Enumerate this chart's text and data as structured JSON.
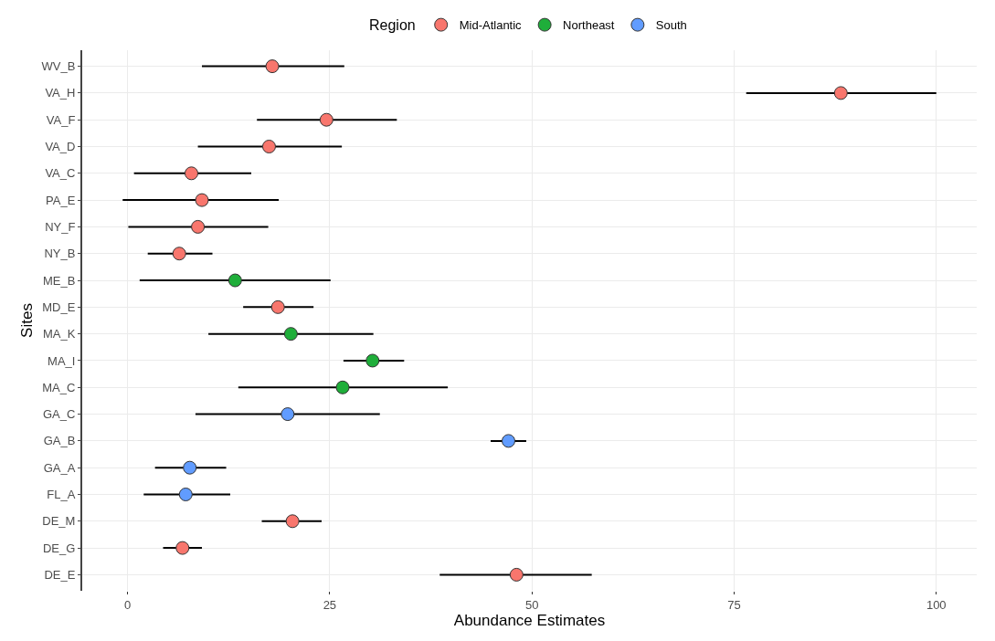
{
  "chart_data": {
    "type": "scatter",
    "orientation": "horizontal",
    "xlabel": "Abundance Estimates",
    "ylabel": "Sites",
    "legend_title": "Region",
    "legend": "top",
    "grid": true,
    "marker": "circle",
    "categories": [
      "WV_B",
      "VA_H",
      "VA_F",
      "VA_D",
      "VA_C",
      "PA_E",
      "NY_F",
      "NY_B",
      "ME_B",
      "MD_E",
      "MA_K",
      "MA_I",
      "MA_C",
      "GA_C",
      "GA_B",
      "GA_A",
      "FL_A",
      "DE_M",
      "DE_G",
      "DE_E"
    ],
    "xlim": [
      -5.6,
      105
    ],
    "xticks": [
      0,
      25,
      50,
      75,
      100
    ],
    "series": [
      {
        "name": "Mid-Atlantic",
        "color": "#f8766d",
        "values": [
          17.9,
          88.2,
          24.6,
          17.5,
          7.9,
          9.2,
          8.7,
          6.4,
          null,
          18.6,
          null,
          null,
          null,
          null,
          null,
          null,
          null,
          20.4,
          6.8,
          48.1
        ],
        "errors": [
          [
            9.2,
            26.8
          ],
          [
            76.5,
            100
          ],
          [
            16.0,
            33.3
          ],
          [
            8.7,
            26.5
          ],
          [
            0.8,
            15.3
          ],
          [
            -0.6,
            18.7
          ],
          [
            0.1,
            17.4
          ],
          [
            2.5,
            10.5
          ],
          null,
          [
            14.3,
            23.0
          ],
          null,
          null,
          null,
          null,
          null,
          null,
          null,
          [
            16.6,
            24.0
          ],
          [
            4.4,
            9.2
          ],
          [
            38.6,
            57.4
          ]
        ]
      },
      {
        "name": "Northeast",
        "color": "#1fae3a",
        "values": [
          null,
          null,
          null,
          null,
          null,
          null,
          null,
          null,
          13.3,
          null,
          20.2,
          30.3,
          26.6,
          null,
          null,
          null,
          null,
          null,
          null,
          null
        ],
        "errors": [
          null,
          null,
          null,
          null,
          null,
          null,
          null,
          null,
          [
            1.5,
            25.1
          ],
          null,
          [
            10.0,
            30.4
          ],
          [
            26.7,
            34.2
          ],
          [
            13.7,
            39.6
          ],
          null,
          null,
          null,
          null,
          null,
          null,
          null
        ]
      },
      {
        "name": "South",
        "color": "#619cff",
        "values": [
          null,
          null,
          null,
          null,
          null,
          null,
          null,
          null,
          null,
          null,
          null,
          null,
          null,
          19.8,
          47.1,
          7.7,
          7.2,
          null,
          null,
          null
        ],
        "errors": [
          null,
          null,
          null,
          null,
          null,
          null,
          null,
          null,
          null,
          null,
          null,
          null,
          null,
          [
            8.4,
            31.2
          ],
          [
            44.9,
            49.3
          ],
          [
            3.4,
            12.2
          ],
          [
            2.0,
            12.7
          ],
          null,
          null,
          null
        ]
      }
    ]
  }
}
